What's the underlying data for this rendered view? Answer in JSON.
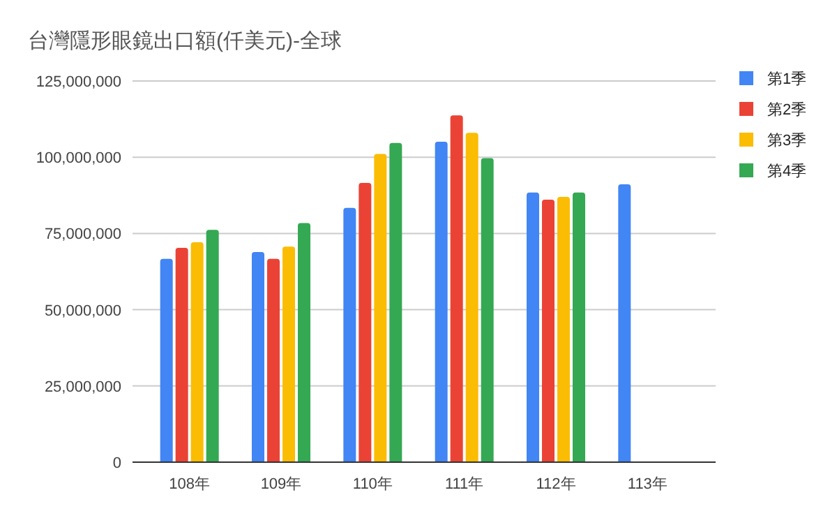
{
  "chart_data": {
    "type": "bar",
    "title": "台灣隱形眼鏡出口額(仟美元)-全球",
    "categories": [
      "108年",
      "109年",
      "110年",
      "111年",
      "112年",
      "113年"
    ],
    "series": [
      {
        "name": "第1季",
        "color": "#4285f4",
        "values": [
          66700000,
          68900000,
          83400000,
          105100000,
          88400000,
          91100000
        ]
      },
      {
        "name": "第2季",
        "color": "#ea4335",
        "values": [
          70300000,
          66700000,
          91600000,
          113700000,
          86100000,
          null
        ]
      },
      {
        "name": "第3季",
        "color": "#fbbc04",
        "values": [
          72100000,
          70700000,
          101100000,
          108000000,
          87000000,
          null
        ]
      },
      {
        "name": "第4季",
        "color": "#34a853",
        "values": [
          76200000,
          78400000,
          104700000,
          99700000,
          88400000,
          null
        ]
      }
    ],
    "ylim": [
      0,
      125000000
    ],
    "yticks": [
      {
        "value": 0,
        "label": "0"
      },
      {
        "value": 25000000,
        "label": "25,000,000"
      },
      {
        "value": 50000000,
        "label": "50,000,000"
      },
      {
        "value": 75000000,
        "label": "75,000,000"
      },
      {
        "value": 100000000,
        "label": "100,000,000"
      },
      {
        "value": 125000000,
        "label": "125,000,000"
      }
    ],
    "grid": "y",
    "legend": "right"
  }
}
